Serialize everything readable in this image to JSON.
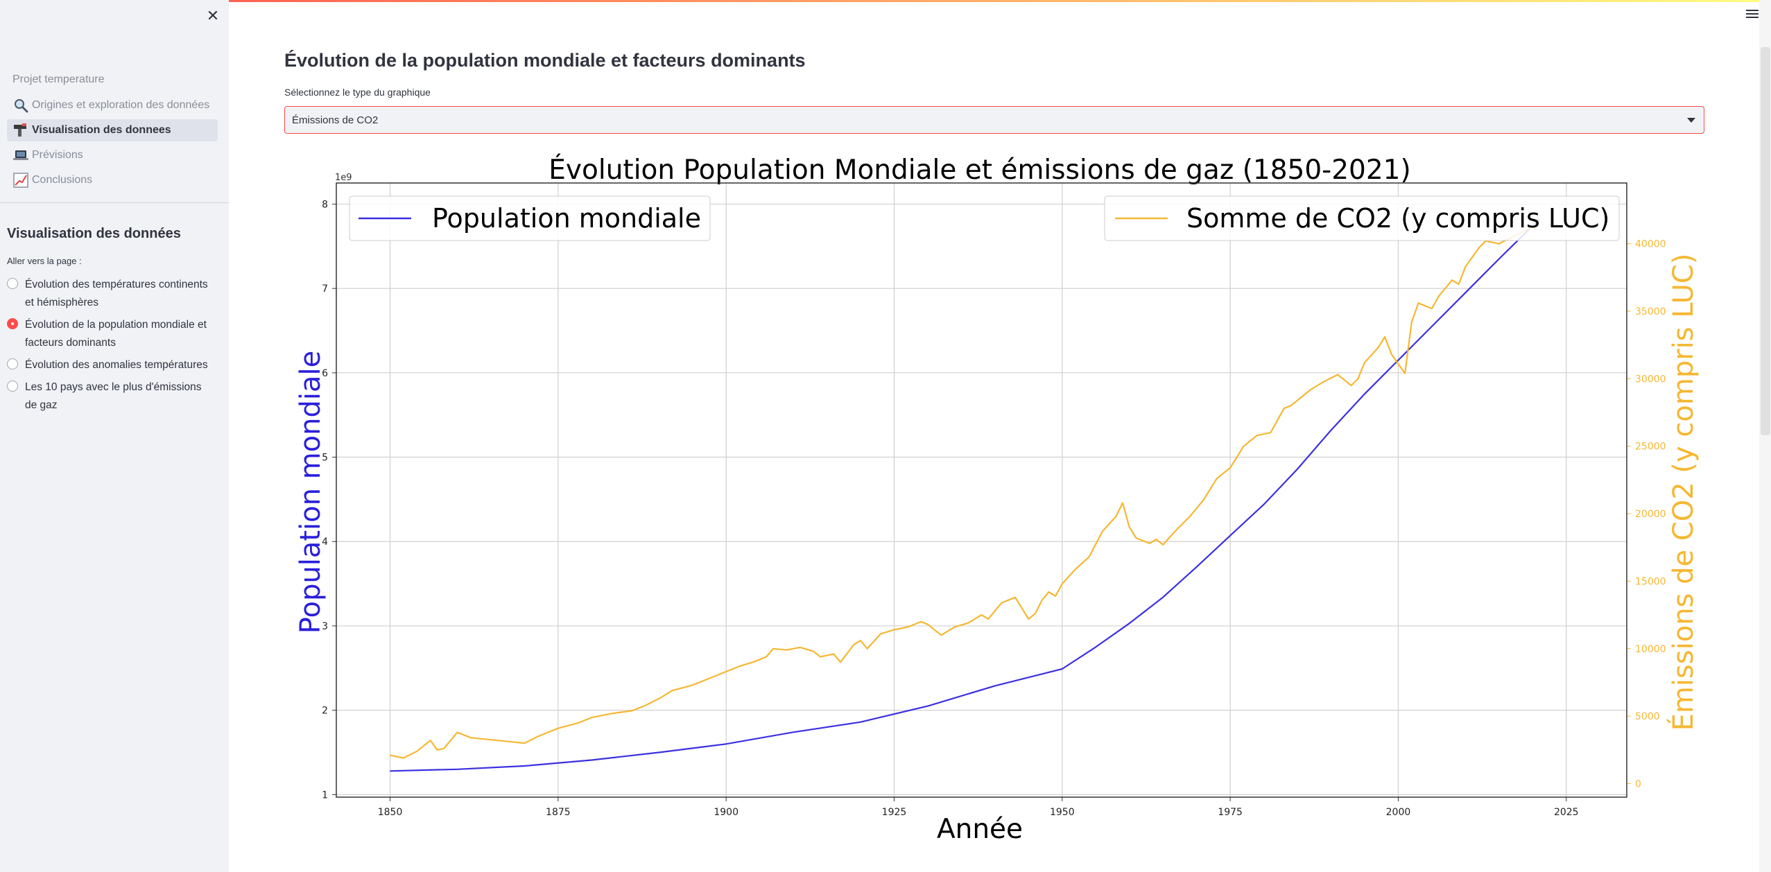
{
  "sidebar": {
    "close_icon": "close-icon",
    "project_label": "Projet temperature",
    "nav": [
      {
        "label": "Origines et exploration des données",
        "icon": "magnifier-icon",
        "active": false
      },
      {
        "label": "Visualisation des donnees",
        "icon": "chart-tool-icon",
        "active": true
      },
      {
        "label": "Prévisions",
        "icon": "laptop-icon",
        "active": false
      },
      {
        "label": "Conclusions",
        "icon": "chart-trend-icon",
        "active": false
      }
    ],
    "section_title": "Visualisation des données",
    "radio_label": "Aller vers la page :",
    "radios": [
      {
        "label": "Évolution des températures continents et hémisphères",
        "checked": false
      },
      {
        "label": "Évolution de la population mondiale et facteurs dominants",
        "checked": true
      },
      {
        "label": "Évolution des anomalies températures",
        "checked": false
      },
      {
        "label": "Les 10 pays avec le plus d'émissions de gaz",
        "checked": false
      }
    ]
  },
  "main": {
    "title": "Évolution de la population mondiale et facteurs dominants",
    "select_label": "Sélectionnez le type du graphique",
    "select_value": "Émissions de CO2"
  },
  "colors": {
    "accent": "#ff4b4b",
    "population": "#3b2fe0",
    "co2": "#f5b731"
  },
  "chart_data": {
    "type": "line",
    "title": "Évolution Population Mondiale et émissions de gaz (1850-2021)",
    "xlabel": "Année",
    "xlim": [
      1842,
      2034
    ],
    "xticks": [
      1850,
      1875,
      1900,
      1925,
      1950,
      1975,
      2000,
      2025
    ],
    "grid": true,
    "left_axis": {
      "label": "Population mondiale",
      "offset_label": "1e9",
      "ylim": [
        0.97,
        8.25
      ],
      "ticks": [
        1,
        2,
        3,
        4,
        5,
        6,
        7,
        8
      ]
    },
    "right_axis": {
      "label": "Émissions de CO2 (y compris LUC)",
      "ylim": [
        -1000,
        44500
      ],
      "ticks": [
        0,
        5000,
        10000,
        15000,
        20000,
        25000,
        30000,
        35000,
        40000
      ]
    },
    "legend_left": {
      "label": "Population mondiale",
      "placement": "upper left"
    },
    "legend_right": {
      "label": "Somme de CO2 (y compris LUC)",
      "placement": "upper right"
    },
    "series": [
      {
        "name": "Population mondiale",
        "axis": "left",
        "x": [
          1850,
          1860,
          1870,
          1880,
          1890,
          1900,
          1910,
          1920,
          1930,
          1940,
          1950,
          1955,
          1960,
          1965,
          1970,
          1975,
          1980,
          1985,
          1990,
          1995,
          2000,
          2005,
          2010,
          2015,
          2021
        ],
        "y": [
          1.28,
          1.3,
          1.34,
          1.41,
          1.5,
          1.6,
          1.74,
          1.86,
          2.05,
          2.29,
          2.49,
          2.75,
          3.03,
          3.34,
          3.7,
          4.07,
          4.44,
          4.86,
          5.32,
          5.75,
          6.15,
          6.55,
          6.95,
          7.35,
          7.82
        ]
      },
      {
        "name": "Somme de CO2 (y compris LUC)",
        "axis": "right",
        "x": [
          1850,
          1852,
          1854,
          1856,
          1857,
          1858,
          1860,
          1862,
          1866,
          1868,
          1870,
          1872,
          1875,
          1878,
          1880,
          1883,
          1886,
          1888,
          1890,
          1892,
          1895,
          1897,
          1900,
          1902,
          1904,
          1906,
          1907,
          1909,
          1911,
          1913,
          1914,
          1916,
          1917,
          1919,
          1920,
          1921,
          1923,
          1925,
          1927,
          1929,
          1930,
          1932,
          1934,
          1936,
          1938,
          1939,
          1941,
          1943,
          1944,
          1945,
          1946,
          1947,
          1948,
          1949,
          1950,
          1952,
          1954,
          1956,
          1958,
          1959,
          1960,
          1961,
          1962,
          1963,
          1964,
          1965,
          1967,
          1969,
          1971,
          1973,
          1975,
          1977,
          1979,
          1981,
          1983,
          1984,
          1985,
          1987,
          1989,
          1991,
          1993,
          1994,
          1995,
          1997,
          1998,
          1999,
          2001,
          2002,
          2003,
          2005,
          2006,
          2008,
          2009,
          2010,
          2012,
          2013,
          2015,
          2017,
          2021
        ],
        "y": [
          2100,
          1900,
          2400,
          3200,
          2500,
          2600,
          3800,
          3400,
          3200,
          3100,
          3000,
          3500,
          4100,
          4500,
          4900,
          5200,
          5400,
          5800,
          6300,
          6900,
          7300,
          7700,
          8300,
          8700,
          9000,
          9400,
          10000,
          9900,
          10100,
          9800,
          9400,
          9600,
          9000,
          10300,
          10600,
          10000,
          11100,
          11400,
          11600,
          12000,
          11800,
          11000,
          11600,
          11900,
          12500,
          12200,
          13400,
          13800,
          13000,
          12200,
          12600,
          13600,
          14200,
          13900,
          14800,
          15900,
          16800,
          18700,
          19800,
          20800,
          19000,
          18200,
          18000,
          17800,
          18100,
          17700,
          18800,
          19800,
          21000,
          22600,
          23400,
          25000,
          25800,
          26000,
          27800,
          28000,
          28400,
          29200,
          29800,
          30300,
          29500,
          30000,
          31200,
          32300,
          33100,
          31800,
          30400,
          34200,
          35600,
          35200,
          36100,
          37300,
          37000,
          38300,
          39700,
          40200,
          40000,
          40500,
          41500
        ]
      }
    ]
  }
}
